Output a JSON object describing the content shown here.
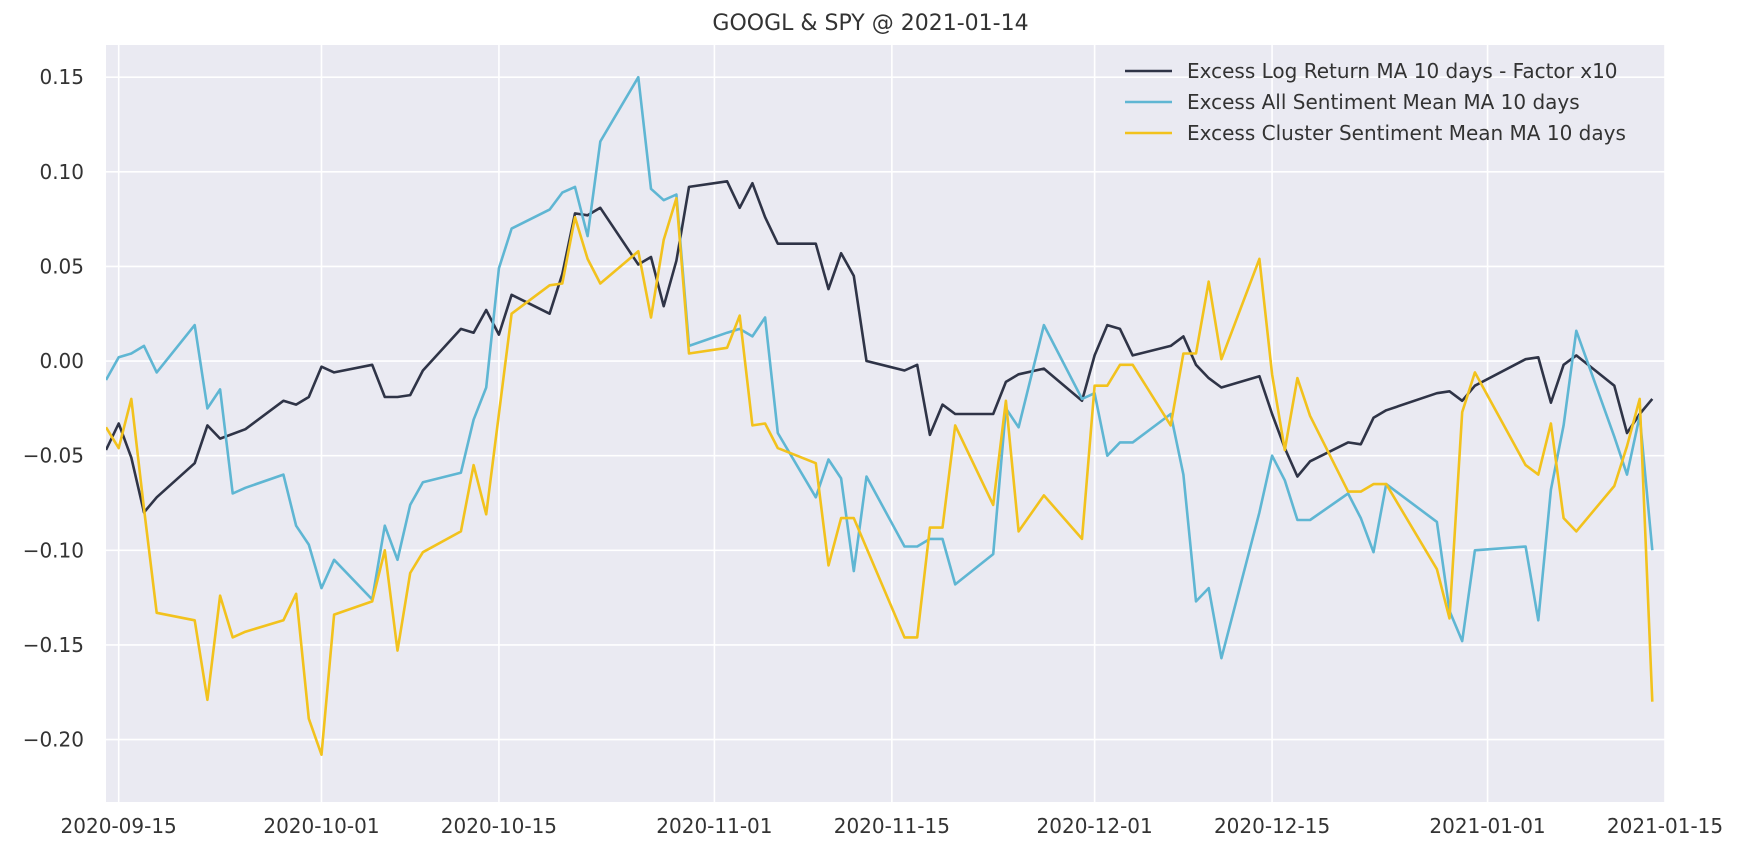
{
  "chart_data": {
    "type": "line",
    "title": "GOOGL & SPY @ 2021-01-14",
    "xlabel": "",
    "ylabel": "",
    "xlim": [
      "2020-09-14",
      "2021-01-15"
    ],
    "ylim": [
      -0.233,
      0.167
    ],
    "x_ticks": [
      "2020-09-15",
      "2020-10-01",
      "2020-10-15",
      "2020-11-01",
      "2020-11-15",
      "2020-12-01",
      "2020-12-15",
      "2021-01-01",
      "2021-01-15"
    ],
    "y_ticks": [
      -0.2,
      -0.15,
      -0.1,
      -0.05,
      0.0,
      0.05,
      0.1,
      0.15
    ],
    "y_tick_labels": [
      "−0.20",
      "−0.15",
      "−0.10",
      "−0.05",
      "0.00",
      "0.05",
      "0.10",
      "0.15"
    ],
    "grid": true,
    "legend_position": "top-right",
    "background": "#eaeaf2",
    "series": [
      {
        "name": "Excess Log Return MA 10 days - Factor x10",
        "color": "#2f3447",
        "points": [
          [
            "2020-09-14",
            -0.047
          ],
          [
            "2020-09-15",
            -0.033
          ],
          [
            "2020-09-16",
            -0.051
          ],
          [
            "2020-09-17",
            -0.08
          ],
          [
            "2020-09-18",
            -0.072
          ],
          [
            "2020-09-21",
            -0.054
          ],
          [
            "2020-09-22",
            -0.034
          ],
          [
            "2020-09-23",
            -0.041
          ],
          [
            "2020-09-25",
            -0.036
          ],
          [
            "2020-09-28",
            -0.021
          ],
          [
            "2020-09-29",
            -0.023
          ],
          [
            "2020-09-30",
            -0.019
          ],
          [
            "2020-10-01",
            -0.003
          ],
          [
            "2020-10-02",
            -0.006
          ],
          [
            "2020-10-05",
            -0.002
          ],
          [
            "2020-10-06",
            -0.019
          ],
          [
            "2020-10-07",
            -0.019
          ],
          [
            "2020-10-08",
            -0.018
          ],
          [
            "2020-10-09",
            -0.005
          ],
          [
            "2020-10-12",
            0.017
          ],
          [
            "2020-10-13",
            0.015
          ],
          [
            "2020-10-14",
            0.027
          ],
          [
            "2020-10-15",
            0.014
          ],
          [
            "2020-10-16",
            0.035
          ],
          [
            "2020-10-19",
            0.025
          ],
          [
            "2020-10-20",
            0.046
          ],
          [
            "2020-10-21",
            0.078
          ],
          [
            "2020-10-22",
            0.077
          ],
          [
            "2020-10-23",
            0.081
          ],
          [
            "2020-10-26",
            0.051
          ],
          [
            "2020-10-27",
            0.055
          ],
          [
            "2020-10-28",
            0.029
          ],
          [
            "2020-10-29",
            0.053
          ],
          [
            "2020-10-30",
            0.092
          ],
          [
            "2020-11-02",
            0.095
          ],
          [
            "2020-11-03",
            0.081
          ],
          [
            "2020-11-04",
            0.094
          ],
          [
            "2020-11-05",
            0.076
          ],
          [
            "2020-11-06",
            0.062
          ],
          [
            "2020-11-09",
            0.062
          ],
          [
            "2020-11-10",
            0.038
          ],
          [
            "2020-11-11",
            0.057
          ],
          [
            "2020-11-12",
            0.045
          ],
          [
            "2020-11-13",
            0.0
          ],
          [
            "2020-11-16",
            -0.005
          ],
          [
            "2020-11-17",
            -0.002
          ],
          [
            "2020-11-18",
            -0.039
          ],
          [
            "2020-11-19",
            -0.023
          ],
          [
            "2020-11-20",
            -0.028
          ],
          [
            "2020-11-23",
            -0.028
          ],
          [
            "2020-11-24",
            -0.011
          ],
          [
            "2020-11-25",
            -0.007
          ],
          [
            "2020-11-27",
            -0.004
          ],
          [
            "2020-11-30",
            -0.021
          ],
          [
            "2020-12-01",
            0.003
          ],
          [
            "2020-12-02",
            0.019
          ],
          [
            "2020-12-03",
            0.017
          ],
          [
            "2020-12-04",
            0.003
          ],
          [
            "2020-12-07",
            0.008
          ],
          [
            "2020-12-08",
            0.013
          ],
          [
            "2020-12-09",
            -0.002
          ],
          [
            "2020-12-10",
            -0.009
          ],
          [
            "2020-12-11",
            -0.014
          ],
          [
            "2020-12-14",
            -0.008
          ],
          [
            "2020-12-15",
            -0.028
          ],
          [
            "2020-12-16",
            -0.046
          ],
          [
            "2020-12-17",
            -0.061
          ],
          [
            "2020-12-18",
            -0.053
          ],
          [
            "2020-12-21",
            -0.043
          ],
          [
            "2020-12-22",
            -0.044
          ],
          [
            "2020-12-23",
            -0.03
          ],
          [
            "2020-12-24",
            -0.026
          ],
          [
            "2020-12-28",
            -0.017
          ],
          [
            "2020-12-29",
            -0.016
          ],
          [
            "2020-12-30",
            -0.021
          ],
          [
            "2020-12-31",
            -0.013
          ],
          [
            "2021-01-04",
            0.001
          ],
          [
            "2021-01-05",
            0.002
          ],
          [
            "2021-01-06",
            -0.022
          ],
          [
            "2021-01-07",
            -0.002
          ],
          [
            "2021-01-08",
            0.003
          ],
          [
            "2021-01-11",
            -0.013
          ],
          [
            "2021-01-12",
            -0.038
          ],
          [
            "2021-01-13",
            -0.028
          ],
          [
            "2021-01-14",
            -0.02
          ]
        ]
      },
      {
        "name": "Excess All Sentiment Mean MA 10 days",
        "color": "#5fb6d3",
        "points": [
          [
            "2020-09-14",
            -0.01
          ],
          [
            "2020-09-15",
            0.002
          ],
          [
            "2020-09-16",
            0.004
          ],
          [
            "2020-09-17",
            0.008
          ],
          [
            "2020-09-18",
            -0.006
          ],
          [
            "2020-09-21",
            0.019
          ],
          [
            "2020-09-22",
            -0.025
          ],
          [
            "2020-09-23",
            -0.015
          ],
          [
            "2020-09-24",
            -0.07
          ],
          [
            "2020-09-25",
            -0.067
          ],
          [
            "2020-09-28",
            -0.06
          ],
          [
            "2020-09-29",
            -0.087
          ],
          [
            "2020-09-30",
            -0.097
          ],
          [
            "2020-10-01",
            -0.12
          ],
          [
            "2020-10-02",
            -0.105
          ],
          [
            "2020-10-05",
            -0.126
          ],
          [
            "2020-10-06",
            -0.087
          ],
          [
            "2020-10-07",
            -0.105
          ],
          [
            "2020-10-08",
            -0.076
          ],
          [
            "2020-10-09",
            -0.064
          ],
          [
            "2020-10-12",
            -0.059
          ],
          [
            "2020-10-13",
            -0.031
          ],
          [
            "2020-10-14",
            -0.014
          ],
          [
            "2020-10-15",
            0.049
          ],
          [
            "2020-10-16",
            0.07
          ],
          [
            "2020-10-19",
            0.08
          ],
          [
            "2020-10-20",
            0.089
          ],
          [
            "2020-10-21",
            0.092
          ],
          [
            "2020-10-22",
            0.066
          ],
          [
            "2020-10-23",
            0.116
          ],
          [
            "2020-10-26",
            0.15
          ],
          [
            "2020-10-27",
            0.091
          ],
          [
            "2020-10-28",
            0.085
          ],
          [
            "2020-10-29",
            0.088
          ],
          [
            "2020-10-30",
            0.008
          ],
          [
            "2020-11-02",
            0.015
          ],
          [
            "2020-11-03",
            0.017
          ],
          [
            "2020-11-04",
            0.013
          ],
          [
            "2020-11-05",
            0.023
          ],
          [
            "2020-11-06",
            -0.038
          ],
          [
            "2020-11-09",
            -0.072
          ],
          [
            "2020-11-10",
            -0.052
          ],
          [
            "2020-11-11",
            -0.062
          ],
          [
            "2020-11-12",
            -0.111
          ],
          [
            "2020-11-13",
            -0.061
          ],
          [
            "2020-11-16",
            -0.098
          ],
          [
            "2020-11-17",
            -0.098
          ],
          [
            "2020-11-18",
            -0.094
          ],
          [
            "2020-11-19",
            -0.094
          ],
          [
            "2020-11-20",
            -0.118
          ],
          [
            "2020-11-23",
            -0.102
          ],
          [
            "2020-11-24",
            -0.025
          ],
          [
            "2020-11-25",
            -0.035
          ],
          [
            "2020-11-27",
            0.019
          ],
          [
            "2020-11-30",
            -0.02
          ],
          [
            "2020-12-01",
            -0.017
          ],
          [
            "2020-12-02",
            -0.05
          ],
          [
            "2020-12-03",
            -0.043
          ],
          [
            "2020-12-04",
            -0.043
          ],
          [
            "2020-12-07",
            -0.028
          ],
          [
            "2020-12-08",
            -0.06
          ],
          [
            "2020-12-09",
            -0.127
          ],
          [
            "2020-12-10",
            -0.12
          ],
          [
            "2020-12-11",
            -0.157
          ],
          [
            "2020-12-14",
            -0.08
          ],
          [
            "2020-12-15",
            -0.05
          ],
          [
            "2020-12-16",
            -0.063
          ],
          [
            "2020-12-17",
            -0.084
          ],
          [
            "2020-12-18",
            -0.084
          ],
          [
            "2020-12-21",
            -0.07
          ],
          [
            "2020-12-22",
            -0.083
          ],
          [
            "2020-12-23",
            -0.101
          ],
          [
            "2020-12-24",
            -0.065
          ],
          [
            "2020-12-28",
            -0.085
          ],
          [
            "2020-12-29",
            -0.132
          ],
          [
            "2020-12-30",
            -0.148
          ],
          [
            "2020-12-31",
            -0.1
          ],
          [
            "2021-01-04",
            -0.098
          ],
          [
            "2021-01-05",
            -0.137
          ],
          [
            "2021-01-06",
            -0.068
          ],
          [
            "2021-01-07",
            -0.034
          ],
          [
            "2021-01-08",
            0.016
          ],
          [
            "2021-01-11",
            -0.04
          ],
          [
            "2021-01-12",
            -0.06
          ],
          [
            "2021-01-13",
            -0.029
          ],
          [
            "2021-01-14",
            -0.1
          ]
        ]
      },
      {
        "name": "Excess Cluster Sentiment Mean MA 10 days",
        "color": "#f2c21d",
        "points": [
          [
            "2020-09-14",
            -0.035
          ],
          [
            "2020-09-15",
            -0.046
          ],
          [
            "2020-09-16",
            -0.02
          ],
          [
            "2020-09-17",
            -0.078
          ],
          [
            "2020-09-18",
            -0.133
          ],
          [
            "2020-09-21",
            -0.137
          ],
          [
            "2020-09-22",
            -0.179
          ],
          [
            "2020-09-23",
            -0.124
          ],
          [
            "2020-09-24",
            -0.146
          ],
          [
            "2020-09-25",
            -0.143
          ],
          [
            "2020-09-28",
            -0.137
          ],
          [
            "2020-09-29",
            -0.123
          ],
          [
            "2020-09-30",
            -0.189
          ],
          [
            "2020-10-01",
            -0.208
          ],
          [
            "2020-10-02",
            -0.134
          ],
          [
            "2020-10-05",
            -0.127
          ],
          [
            "2020-10-06",
            -0.1
          ],
          [
            "2020-10-07",
            -0.153
          ],
          [
            "2020-10-08",
            -0.112
          ],
          [
            "2020-10-09",
            -0.101
          ],
          [
            "2020-10-12",
            -0.09
          ],
          [
            "2020-10-13",
            -0.055
          ],
          [
            "2020-10-14",
            -0.081
          ],
          [
            "2020-10-16",
            0.025
          ],
          [
            "2020-10-19",
            0.04
          ],
          [
            "2020-10-20",
            0.041
          ],
          [
            "2020-10-21",
            0.076
          ],
          [
            "2020-10-22",
            0.054
          ],
          [
            "2020-10-23",
            0.041
          ],
          [
            "2020-10-26",
            0.058
          ],
          [
            "2020-10-27",
            0.023
          ],
          [
            "2020-10-28",
            0.064
          ],
          [
            "2020-10-29",
            0.086
          ],
          [
            "2020-10-30",
            0.004
          ],
          [
            "2020-11-02",
            0.007
          ],
          [
            "2020-11-03",
            0.024
          ],
          [
            "2020-11-04",
            -0.034
          ],
          [
            "2020-11-05",
            -0.033
          ],
          [
            "2020-11-06",
            -0.046
          ],
          [
            "2020-11-09",
            -0.054
          ],
          [
            "2020-11-10",
            -0.108
          ],
          [
            "2020-11-11",
            -0.083
          ],
          [
            "2020-11-12",
            -0.083
          ],
          [
            "2020-11-16",
            -0.146
          ],
          [
            "2020-11-17",
            -0.146
          ],
          [
            "2020-11-18",
            -0.088
          ],
          [
            "2020-11-19",
            -0.088
          ],
          [
            "2020-11-20",
            -0.034
          ],
          [
            "2020-11-23",
            -0.076
          ],
          [
            "2020-11-24",
            -0.021
          ],
          [
            "2020-11-25",
            -0.09
          ],
          [
            "2020-11-27",
            -0.071
          ],
          [
            "2020-11-30",
            -0.094
          ],
          [
            "2020-12-01",
            -0.013
          ],
          [
            "2020-12-02",
            -0.013
          ],
          [
            "2020-12-03",
            -0.002
          ],
          [
            "2020-12-04",
            -0.002
          ],
          [
            "2020-12-07",
            -0.034
          ],
          [
            "2020-12-08",
            0.004
          ],
          [
            "2020-12-09",
            0.004
          ],
          [
            "2020-12-10",
            0.042
          ],
          [
            "2020-12-11",
            0.001
          ],
          [
            "2020-12-14",
            0.054
          ],
          [
            "2020-12-15",
            -0.007
          ],
          [
            "2020-12-16",
            -0.047
          ],
          [
            "2020-12-17",
            -0.009
          ],
          [
            "2020-12-18",
            -0.029
          ],
          [
            "2020-12-21",
            -0.069
          ],
          [
            "2020-12-22",
            -0.069
          ],
          [
            "2020-12-23",
            -0.065
          ],
          [
            "2020-12-24",
            -0.065
          ],
          [
            "2020-12-28",
            -0.11
          ],
          [
            "2020-12-29",
            -0.136
          ],
          [
            "2020-12-30",
            -0.027
          ],
          [
            "2020-12-31",
            -0.006
          ],
          [
            "2021-01-04",
            -0.055
          ],
          [
            "2021-01-05",
            -0.06
          ],
          [
            "2021-01-06",
            -0.033
          ],
          [
            "2021-01-07",
            -0.083
          ],
          [
            "2021-01-08",
            -0.09
          ],
          [
            "2021-01-11",
            -0.066
          ],
          [
            "2021-01-12",
            -0.045
          ],
          [
            "2021-01-13",
            -0.02
          ],
          [
            "2021-01-14",
            -0.18
          ]
        ]
      }
    ]
  }
}
